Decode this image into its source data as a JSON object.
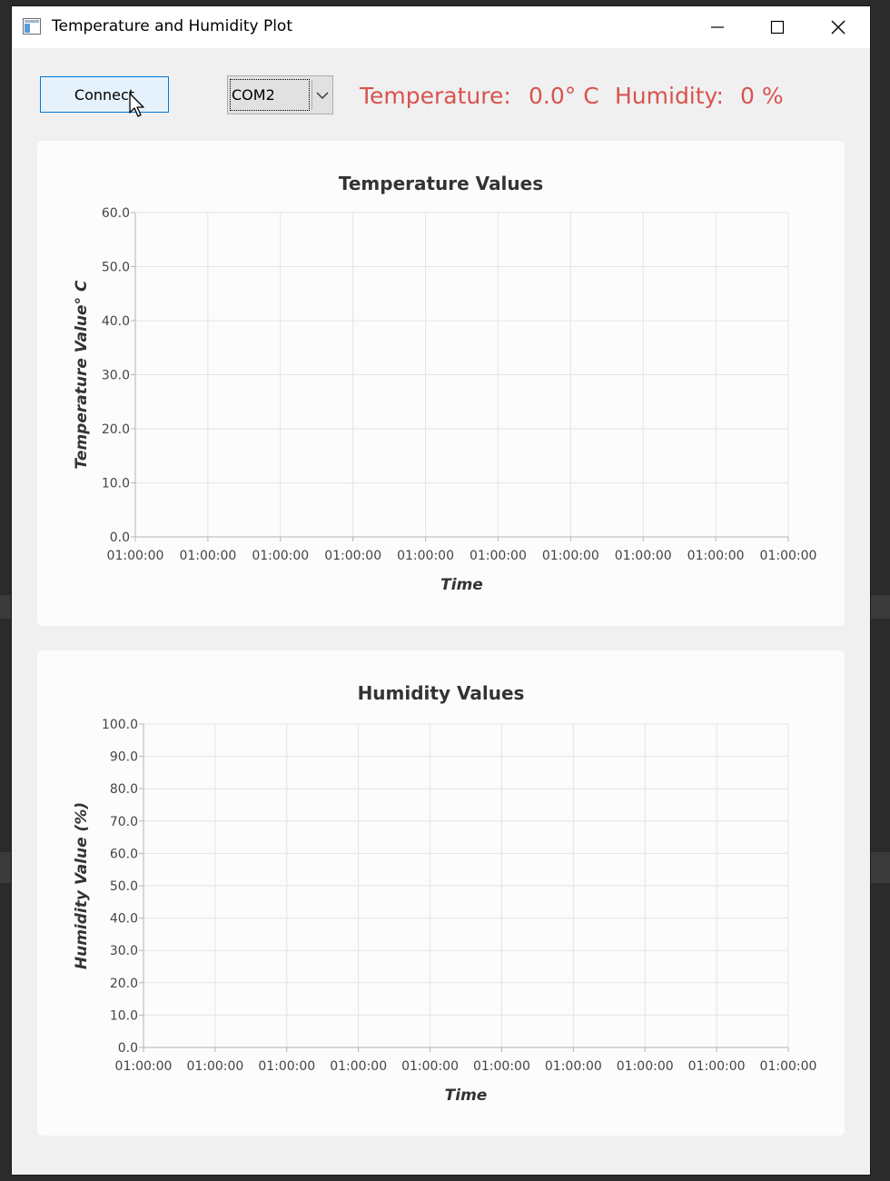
{
  "window": {
    "title": "Temperature and Humidity Plot"
  },
  "controls": {
    "connect_label": "Connect",
    "port_selected": "COM2",
    "temperature_label": "Temperature:",
    "temperature_value": "0.0° C",
    "humidity_label": "Humidity:",
    "humidity_value": "0 %"
  },
  "colors": {
    "reading": "#d9534f",
    "accent": "#0078d7"
  },
  "chart_data": [
    {
      "type": "line",
      "title": "Temperature Values",
      "xlabel": "Time",
      "ylabel": "Temperature Value° C",
      "ylim": [
        0,
        60
      ],
      "y_ticks": [
        "0.0",
        "10.0",
        "20.0",
        "30.0",
        "40.0",
        "50.0",
        "60.0"
      ],
      "categories": [
        "01:00:00",
        "01:00:00",
        "01:00:00",
        "01:00:00",
        "01:00:00",
        "01:00:00",
        "01:00:00",
        "01:00:00",
        "01:00:00",
        "01:00:00"
      ],
      "series": [],
      "grid": true
    },
    {
      "type": "line",
      "title": "Humidity Values",
      "xlabel": "Time",
      "ylabel": "Humidity Value (%)",
      "ylim": [
        0,
        100
      ],
      "y_ticks": [
        "0.0",
        "10.0",
        "20.0",
        "30.0",
        "40.0",
        "50.0",
        "60.0",
        "70.0",
        "80.0",
        "90.0",
        "100.0"
      ],
      "categories": [
        "01:00:00",
        "01:00:00",
        "01:00:00",
        "01:00:00",
        "01:00:00",
        "01:00:00",
        "01:00:00",
        "01:00:00",
        "01:00:00",
        "01:00:00"
      ],
      "series": [],
      "grid": true
    }
  ]
}
